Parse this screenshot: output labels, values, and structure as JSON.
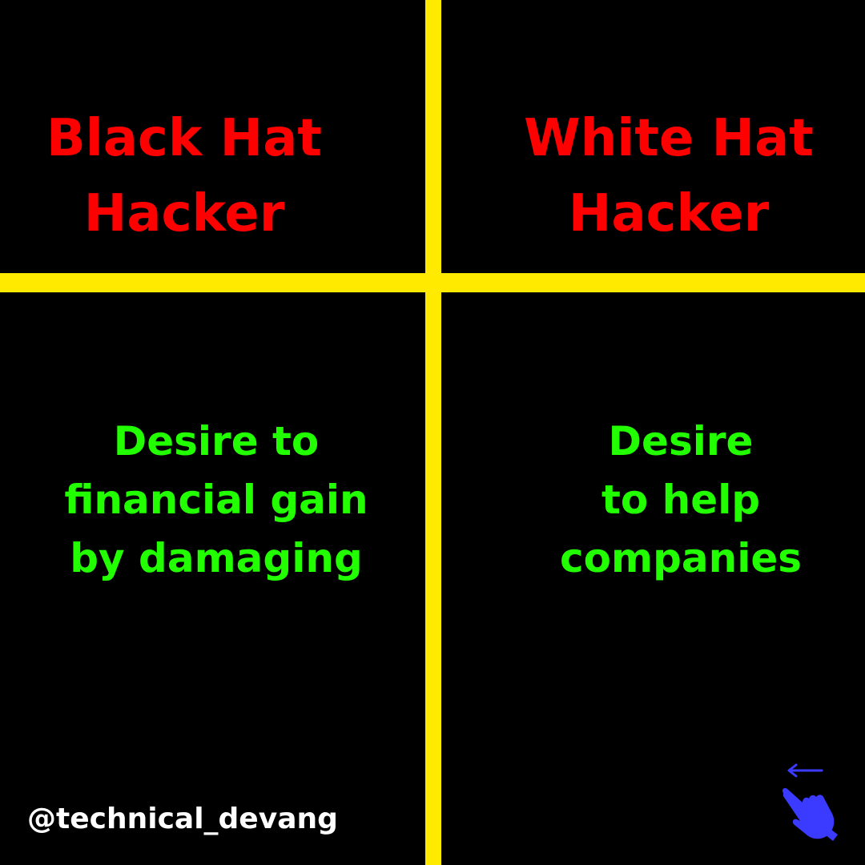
{
  "left_panel": {
    "heading": [
      "Black Hat",
      "Hacker"
    ],
    "description": [
      "Desire to",
      "financial gain",
      "by damaging"
    ]
  },
  "right_panel": {
    "heading": [
      "White Hat",
      "Hacker"
    ],
    "description": [
      "Desire",
      "to help",
      "companies"
    ]
  },
  "footer": {
    "handle": "@technical_devang",
    "swipe_icon": "swipe-left-hand-icon"
  },
  "colors": {
    "background": "#000000",
    "divider": "#ffea00",
    "heading": "#ff0000",
    "description": "#22ff00",
    "handle": "#ffffff",
    "swipe_icon": "#3b3bff"
  }
}
